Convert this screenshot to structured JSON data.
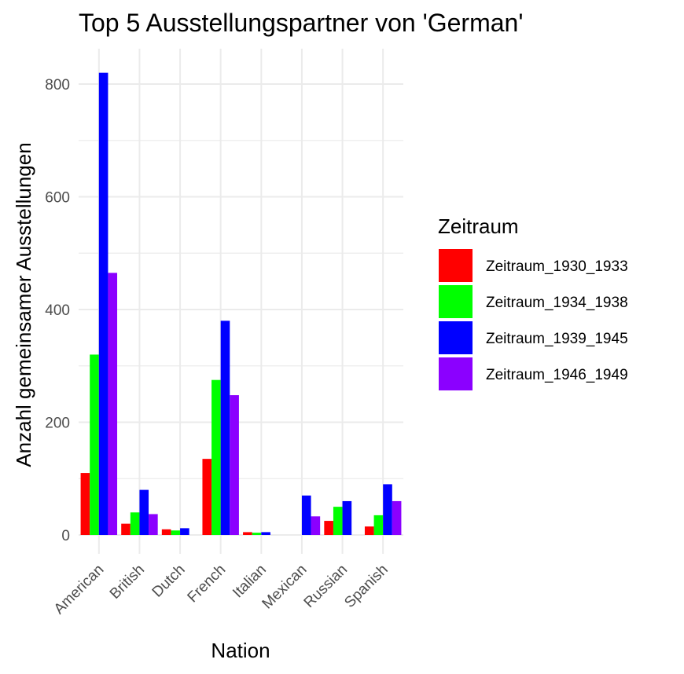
{
  "chart_data": {
    "type": "bar",
    "title": "Top 5 Ausstellungspartner von 'German'",
    "xlabel": "Nation",
    "ylabel": "Anzahl gemeinsamer Ausstellungen",
    "categories": [
      "American",
      "British",
      "Dutch",
      "French",
      "Italian",
      "Mexican",
      "Russian",
      "Spanish"
    ],
    "ylim": [
      0,
      860
    ],
    "yticks": [
      0,
      200,
      400,
      600,
      800
    ],
    "grid": true,
    "legend": {
      "title": "Zeitraum",
      "position": "right"
    },
    "series": [
      {
        "name": "Zeitraum_1930_1933",
        "color": "#ff0000",
        "values": [
          110,
          20,
          10,
          135,
          5,
          null,
          25,
          15
        ]
      },
      {
        "name": "Zeitraum_1934_1938",
        "color": "#00ff00",
        "values": [
          320,
          40,
          8,
          275,
          4,
          null,
          50,
          35
        ]
      },
      {
        "name": "Zeitraum_1939_1945",
        "color": "#0000ff",
        "values": [
          820,
          80,
          12,
          380,
          5,
          70,
          60,
          90
        ]
      },
      {
        "name": "Zeitraum_1946_1949",
        "color": "#8b00ff",
        "values": [
          465,
          37,
          null,
          248,
          null,
          33,
          null,
          60
        ]
      }
    ]
  }
}
